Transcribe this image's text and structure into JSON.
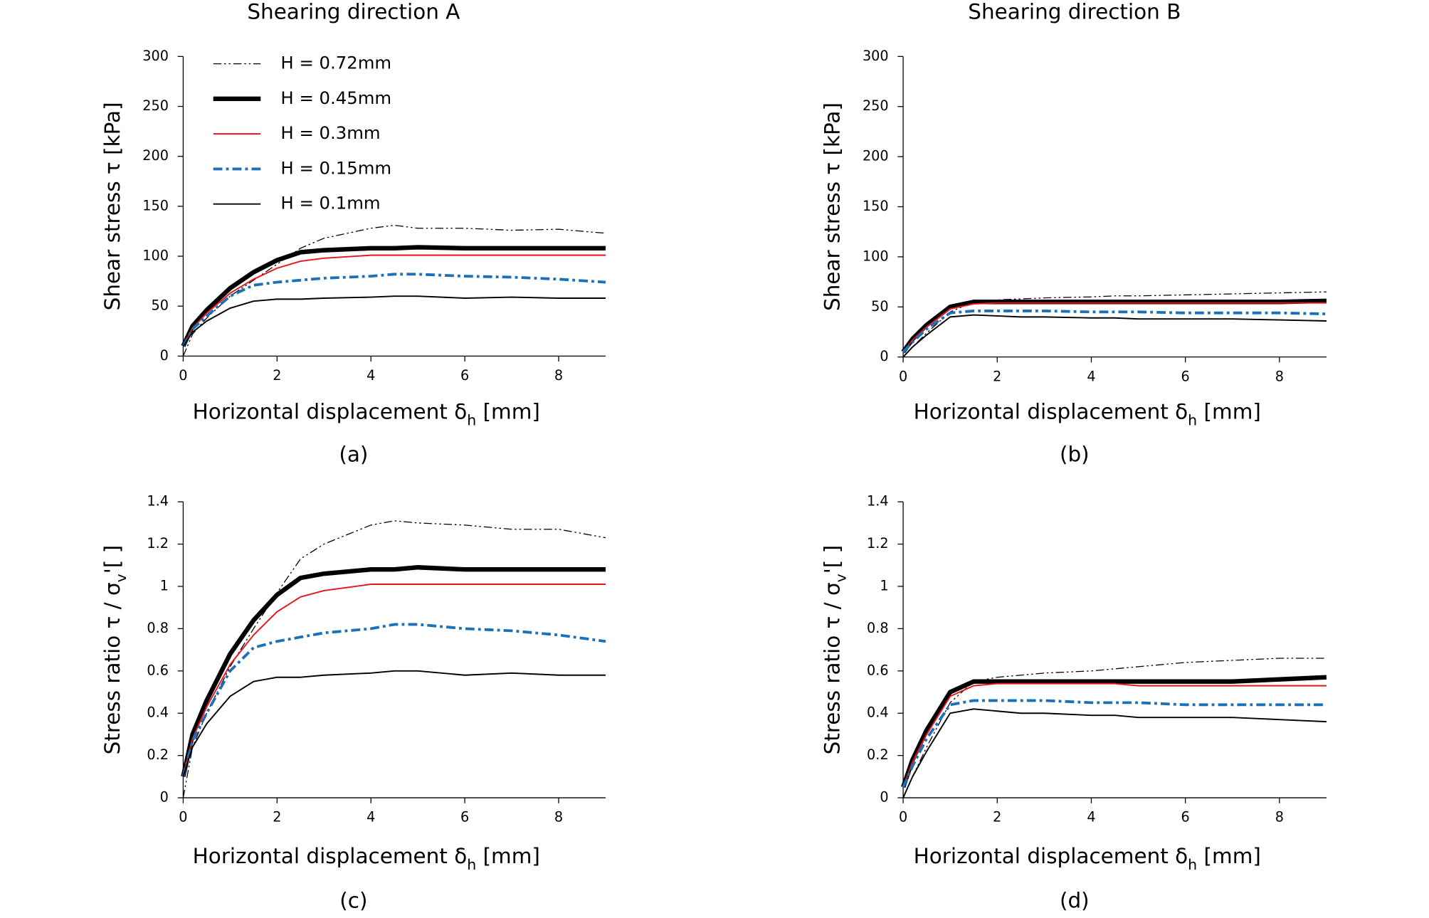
{
  "chart_data": [
    {
      "type": "line",
      "title": "Shearing direction A",
      "caption": "(a)",
      "xlabel": [
        "Horizontal displacement δ",
        "h",
        " [mm]"
      ],
      "ylabel": [
        "Shear stress τ [kPa]"
      ],
      "xlim": [
        0,
        9
      ],
      "xticks": [
        0,
        2,
        4,
        6,
        8
      ],
      "ylim": [
        0,
        300
      ],
      "yticks": [
        0,
        50,
        100,
        150,
        200,
        250,
        300
      ],
      "legend": true,
      "x": [
        0,
        0.2,
        0.5,
        1,
        1.5,
        2,
        2.5,
        3,
        4,
        4.5,
        5,
        6,
        7,
        8,
        9
      ],
      "series": [
        {
          "name": "H = 0.72mm",
          "color": "#000000",
          "width": 1,
          "dash": "9 3 2 3 2 3",
          "values": [
            0,
            22,
            38,
            60,
            76,
            92,
            108,
            118,
            128,
            131,
            128,
            128,
            126,
            127,
            123
          ]
        },
        {
          "name": "H = 0.45mm",
          "color": "#000000",
          "width": 5,
          "dash": "none",
          "values": [
            10,
            30,
            46,
            68,
            84,
            96,
            104,
            106,
            108,
            108,
            109,
            108,
            108,
            108,
            108
          ]
        },
        {
          "name": "H = 0.3mm",
          "color": "#e8141c",
          "width": 1.5,
          "dash": "none",
          "values": [
            10,
            28,
            43,
            63,
            77,
            88,
            95,
            98,
            101,
            101,
            101,
            101,
            101,
            101,
            101
          ]
        },
        {
          "name": "H = 0.15mm",
          "color": "#1c70b8",
          "width": 3,
          "dash": "10 4 3 4",
          "values": [
            10,
            27,
            40,
            60,
            71,
            74,
            76,
            78,
            80,
            82,
            82,
            80,
            79,
            77,
            74
          ]
        },
        {
          "name": "H = 0.1mm",
          "color": "#000000",
          "width": 1.5,
          "dash": "none",
          "values": [
            10,
            24,
            35,
            48,
            55,
            57,
            57,
            58,
            59,
            60,
            60,
            58,
            59,
            58,
            58
          ]
        }
      ]
    },
    {
      "type": "line",
      "title": "Shearing direction B",
      "caption": "(b)",
      "xlabel": [
        "Horizontal displacement δ",
        "h",
        " [mm]"
      ],
      "ylabel": [
        "Shear stress τ [kPa]"
      ],
      "xlim": [
        0,
        9
      ],
      "xticks": [
        0,
        2,
        4,
        6,
        8
      ],
      "ylim": [
        0,
        300
      ],
      "yticks": [
        0,
        50,
        100,
        150,
        200,
        250,
        300
      ],
      "legend": false,
      "x": [
        0,
        0.2,
        0.5,
        1,
        1.5,
        2,
        2.5,
        3,
        4,
        4.5,
        5,
        6,
        7,
        8,
        9
      ],
      "series": [
        {
          "color": "#000000",
          "width": 1,
          "dash": "9 3 2 3 2 3",
          "values": [
            0,
            10,
            24,
            45,
            55,
            57,
            58,
            59,
            60,
            61,
            61,
            62,
            63,
            64,
            65
          ]
        },
        {
          "color": "#000000",
          "width": 5,
          "dash": "none",
          "values": [
            5,
            18,
            32,
            50,
            55,
            55,
            55,
            55,
            55,
            55,
            55,
            55,
            55,
            55,
            56
          ]
        },
        {
          "color": "#e8141c",
          "width": 1.5,
          "dash": "none",
          "values": [
            5,
            17,
            30,
            48,
            53,
            54,
            54,
            54,
            54,
            54,
            54,
            54,
            54,
            54,
            54
          ]
        },
        {
          "color": "#1c70b8",
          "width": 3,
          "dash": "10 4 3 4",
          "values": [
            5,
            15,
            28,
            44,
            46,
            46,
            46,
            46,
            45,
            45,
            45,
            44,
            44,
            44,
            43
          ]
        },
        {
          "color": "#000000",
          "width": 1.5,
          "dash": "none",
          "values": [
            0,
            10,
            22,
            40,
            42,
            41,
            40,
            40,
            39,
            39,
            38,
            38,
            38,
            37,
            36
          ]
        }
      ]
    },
    {
      "type": "line",
      "caption": "(c)",
      "xlabel": [
        "Horizontal displacement δ",
        "h",
        " [mm]"
      ],
      "ylabel": [
        "Stress ratio τ / σ",
        "v",
        "'[ ]"
      ],
      "xlim": [
        0,
        9
      ],
      "xticks": [
        0,
        2,
        4,
        6,
        8
      ],
      "ylim": [
        0,
        1.4
      ],
      "yticks": [
        0,
        0.2,
        0.4,
        0.6,
        0.8,
        1,
        1.2,
        1.4
      ],
      "legend": false,
      "x": [
        0,
        0.2,
        0.5,
        1,
        1.5,
        2,
        2.5,
        3,
        4,
        4.5,
        5,
        6,
        7,
        8,
        9
      ],
      "series": [
        {
          "color": "#000000",
          "width": 1,
          "dash": "9 3 2 3 2 3",
          "values": [
            0,
            0.24,
            0.4,
            0.62,
            0.8,
            0.97,
            1.13,
            1.2,
            1.29,
            1.31,
            1.3,
            1.29,
            1.27,
            1.27,
            1.23
          ]
        },
        {
          "color": "#000000",
          "width": 5,
          "dash": "none",
          "values": [
            0.1,
            0.3,
            0.46,
            0.68,
            0.84,
            0.96,
            1.04,
            1.06,
            1.08,
            1.08,
            1.09,
            1.08,
            1.08,
            1.08,
            1.08
          ]
        },
        {
          "color": "#e8141c",
          "width": 1.5,
          "dash": "none",
          "values": [
            0.1,
            0.28,
            0.43,
            0.63,
            0.77,
            0.88,
            0.95,
            0.98,
            1.01,
            1.01,
            1.01,
            1.01,
            1.01,
            1.01,
            1.01
          ]
        },
        {
          "color": "#1c70b8",
          "width": 3,
          "dash": "10 4 3 4",
          "values": [
            0.1,
            0.27,
            0.4,
            0.6,
            0.71,
            0.74,
            0.76,
            0.78,
            0.8,
            0.82,
            0.82,
            0.8,
            0.79,
            0.77,
            0.74
          ]
        },
        {
          "color": "#000000",
          "width": 1.5,
          "dash": "none",
          "values": [
            0.1,
            0.24,
            0.35,
            0.48,
            0.55,
            0.57,
            0.57,
            0.58,
            0.59,
            0.6,
            0.6,
            0.58,
            0.59,
            0.58,
            0.58
          ]
        }
      ]
    },
    {
      "type": "line",
      "caption": "(d)",
      "xlabel": [
        "Horizontal displacement δ",
        "h",
        " [mm]"
      ],
      "ylabel": [
        "Stress ratio τ / σ",
        "v",
        "'[ ]"
      ],
      "xlim": [
        0,
        9
      ],
      "xticks": [
        0,
        2,
        4,
        6,
        8
      ],
      "ylim": [
        0,
        1.4
      ],
      "yticks": [
        0,
        0.2,
        0.4,
        0.6,
        0.8,
        1,
        1.2,
        1.4
      ],
      "legend": false,
      "x": [
        0,
        0.2,
        0.5,
        1,
        1.5,
        2,
        2.5,
        3,
        4,
        4.5,
        5,
        6,
        7,
        8,
        9
      ],
      "series": [
        {
          "color": "#000000",
          "width": 1,
          "dash": "9 3 2 3 2 3",
          "values": [
            0,
            0.1,
            0.24,
            0.45,
            0.55,
            0.57,
            0.58,
            0.59,
            0.6,
            0.61,
            0.62,
            0.64,
            0.65,
            0.66,
            0.66
          ]
        },
        {
          "color": "#000000",
          "width": 5,
          "dash": "none",
          "values": [
            0.05,
            0.18,
            0.32,
            0.5,
            0.55,
            0.55,
            0.55,
            0.55,
            0.55,
            0.55,
            0.55,
            0.55,
            0.55,
            0.56,
            0.57
          ]
        },
        {
          "color": "#e8141c",
          "width": 1.5,
          "dash": "none",
          "values": [
            0.05,
            0.17,
            0.3,
            0.48,
            0.53,
            0.54,
            0.54,
            0.54,
            0.54,
            0.54,
            0.53,
            0.53,
            0.53,
            0.53,
            0.53
          ]
        },
        {
          "color": "#1c70b8",
          "width": 3,
          "dash": "10 4 3 4",
          "values": [
            0.05,
            0.15,
            0.28,
            0.44,
            0.46,
            0.46,
            0.46,
            0.46,
            0.45,
            0.45,
            0.45,
            0.44,
            0.44,
            0.44,
            0.44
          ]
        },
        {
          "color": "#000000",
          "width": 1.5,
          "dash": "none",
          "values": [
            0,
            0.1,
            0.22,
            0.4,
            0.42,
            0.41,
            0.4,
            0.4,
            0.39,
            0.39,
            0.38,
            0.38,
            0.38,
            0.37,
            0.36
          ]
        }
      ]
    }
  ]
}
